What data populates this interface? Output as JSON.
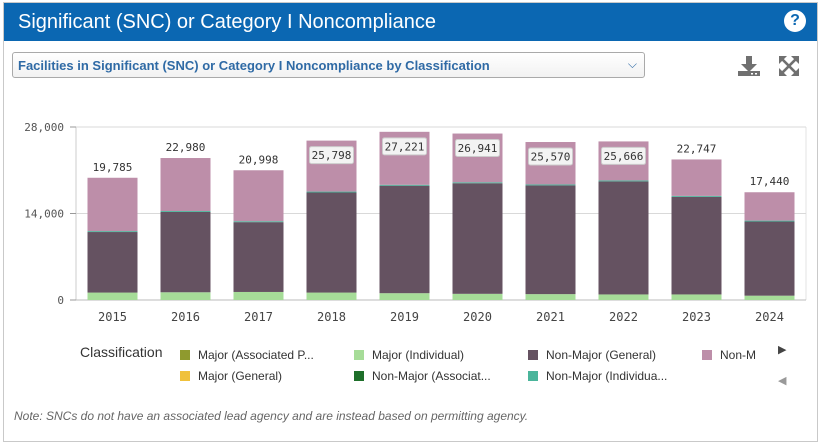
{
  "header": {
    "title": "Significant (SNC) or Category I Noncompliance",
    "help_glyph": "?"
  },
  "selector": {
    "label": "Facilities in Significant (SNC) or Category I Noncompliance by Classification"
  },
  "legend": {
    "title": "Classification",
    "items": [
      {
        "label": "Major (Associated P...",
        "color": "#8f9a2e"
      },
      {
        "label": "Major (Individual)",
        "color": "#a6dc98"
      },
      {
        "label": "Non-Major (General)",
        "color": "#655261"
      },
      {
        "label": "Non-M",
        "color": "#bd8ea9"
      },
      {
        "label": "Major (General)",
        "color": "#f0c13b"
      },
      {
        "label": "Non-Major (Associat...",
        "color": "#1e6f2a"
      },
      {
        "label": "Non-Major (Individua...",
        "color": "#4ab59b"
      }
    ]
  },
  "note": "Note: SNCs do not have an associated lead agency and are instead based on permitting agency.",
  "chart_data": {
    "type": "bar",
    "stacked": true,
    "categories": [
      "2015",
      "2016",
      "2017",
      "2018",
      "2019",
      "2020",
      "2021",
      "2022",
      "2023",
      "2024"
    ],
    "ylim": [
      0,
      28000
    ],
    "yticks": [
      0,
      14000,
      28000
    ],
    "ytick_labels": [
      "0",
      "14,000",
      "28,000"
    ],
    "grid": true,
    "series": [
      {
        "name": "Major (Individual)",
        "color": "#a6dc98",
        "values": [
          1200,
          1250,
          1300,
          1200,
          1100,
          1000,
          950,
          900,
          900,
          700
        ]
      },
      {
        "name": "Non-Major (General)",
        "color": "#655261",
        "values": [
          9800,
          13000,
          11300,
          16200,
          17400,
          17900,
          17600,
          18300,
          15800,
          12000
        ]
      },
      {
        "name": "Non-Major (Individua...",
        "color": "#4ab59b",
        "values": [
          150,
          150,
          150,
          150,
          150,
          150,
          150,
          150,
          150,
          150
        ]
      },
      {
        "name": "Non-M",
        "color": "#bd8ea9",
        "values": [
          8635,
          8580,
          8248,
          8248,
          8571,
          7891,
          6870,
          6316,
          5897,
          4590
        ]
      }
    ],
    "totals": [
      19785,
      22980,
      20998,
      25798,
      27221,
      26941,
      25570,
      25666,
      22747,
      17440
    ],
    "total_labels": [
      "19,785",
      "22,980",
      "20,998",
      "25,798",
      "27,221",
      "26,941",
      "25,570",
      "25,666",
      "22,747",
      "17,440"
    ]
  }
}
